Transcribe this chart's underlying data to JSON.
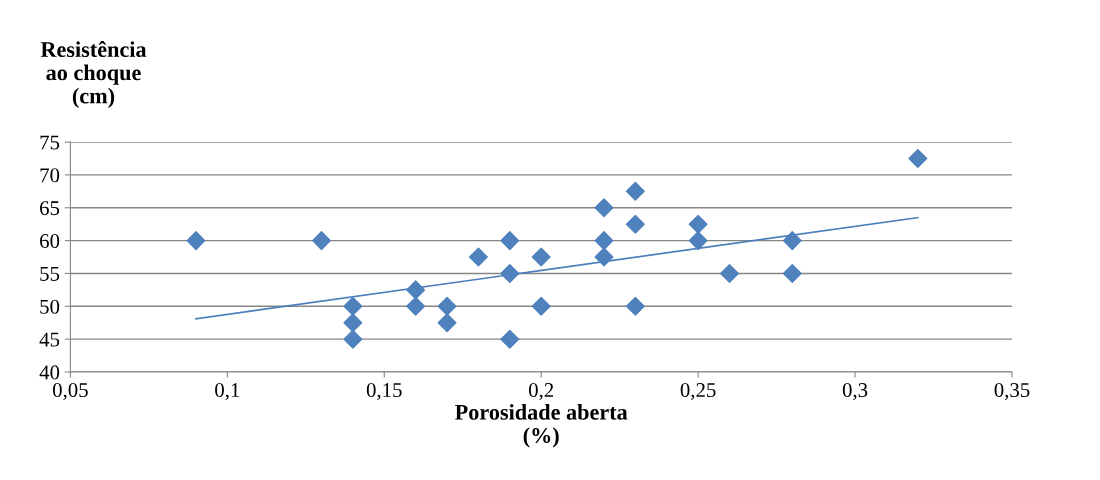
{
  "chart_data": {
    "type": "scatter",
    "ylabel": "Resistência\nao choque\n(cm)",
    "xlabel": "Porosidade aberta\n(%)",
    "xlim": [
      0.05,
      0.35
    ],
    "xticks": [
      {
        "value": 0.05,
        "label": "0,05"
      },
      {
        "value": 0.1,
        "label": "0,1"
      },
      {
        "value": 0.15,
        "label": "0,15"
      },
      {
        "value": 0.2,
        "label": "0,2"
      },
      {
        "value": 0.25,
        "label": "0,25"
      },
      {
        "value": 0.3,
        "label": "0,3"
      },
      {
        "value": 0.35,
        "label": "0,35"
      }
    ],
    "ylim": [
      40,
      75
    ],
    "yticks": [
      40,
      45,
      50,
      55,
      60,
      65,
      70,
      75
    ],
    "grid": "y",
    "legend": false,
    "series": [
      {
        "marker": "diamond",
        "color": "#4f81bd",
        "x": [
          0.09,
          0.13,
          0.14,
          0.14,
          0.14,
          0.16,
          0.16,
          0.17,
          0.17,
          0.18,
          0.19,
          0.19,
          0.19,
          0.2,
          0.2,
          0.22,
          0.22,
          0.22,
          0.23,
          0.23,
          0.23,
          0.25,
          0.25,
          0.26,
          0.28,
          0.28,
          0.32
        ],
        "values": [
          60,
          60,
          50,
          47.5,
          45,
          52.5,
          50,
          50,
          47.5,
          57.5,
          60,
          55,
          45,
          57.5,
          50,
          65,
          60,
          57.5,
          67.5,
          62.5,
          50,
          62.5,
          60,
          55,
          60,
          55,
          72.5
        ]
      },
      {
        "type": "line",
        "marker": "none",
        "line_style": "solid",
        "color": "#4a7ebb",
        "x": [
          0.09,
          0.32
        ],
        "values": [
          48.1,
          63.5
        ]
      }
    ]
  }
}
